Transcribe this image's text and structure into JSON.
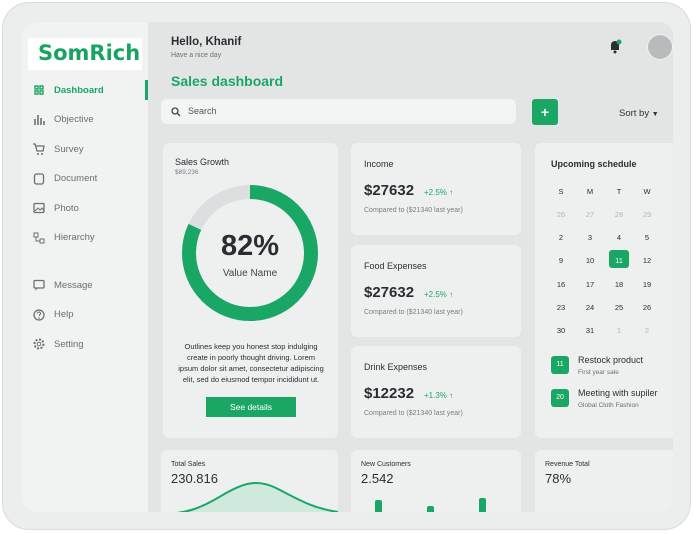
{
  "brand": "SomRich",
  "sidebar": {
    "menu": [
      "Dashboard",
      "Objective",
      "Survey",
      "Document",
      "Photo",
      "Hierarchy"
    ],
    "secondary": [
      "Message",
      "Help",
      "Setting"
    ],
    "active": 0
  },
  "header": {
    "greeting": "Hello, Khanif",
    "subtitle": "Have a nice day"
  },
  "page_title": "Sales dashboard",
  "search_placeholder": "Search",
  "add_button": "+",
  "sort": "Sort by",
  "sales_growth": {
    "title": "Sales Growth",
    "amount": "$89,236",
    "gauge": {
      "value": 82,
      "label": "82%"
    },
    "gauge_caption": "Value Name",
    "description": "Outlines keep you honest stop indulging create in poorly thought driving. Lorem ipsum dolor sit amet, consectetur adipiscing elit, sed do eiusmod tempor incididunt ut.",
    "button": "See details"
  },
  "stats": [
    {
      "title": "Income",
      "amount": "$27632",
      "change": "+2.5%",
      "note": "Compared to ($21340 last year)"
    },
    {
      "title": "Food Expenses",
      "amount": "$27632",
      "change": "+2.5%",
      "note": "Compared to ($21340 last year)"
    },
    {
      "title": "Drink Expenses",
      "amount": "$12232",
      "change": "+1.3%",
      "note": "Compared to ($21340 last year)"
    }
  ],
  "schedule": {
    "title": "Upcoming schedule",
    "weekdays": [
      "S",
      "M",
      "T",
      "W"
    ],
    "rows": [
      [
        {
          "day": "26",
          "faded": true
        },
        {
          "day": "27",
          "faded": true
        },
        {
          "day": "28",
          "faded": true
        },
        {
          "day": "29",
          "faded": true
        }
      ],
      [
        {
          "day": "2"
        },
        {
          "day": "3"
        },
        {
          "day": "4"
        },
        {
          "day": "5"
        }
      ],
      [
        {
          "day": "9"
        },
        {
          "day": "10"
        },
        {
          "day": "11",
          "selected": true
        },
        {
          "day": "12"
        }
      ],
      [
        {
          "day": "16"
        },
        {
          "day": "17"
        },
        {
          "day": "18"
        },
        {
          "day": "19"
        }
      ],
      [
        {
          "day": "23"
        },
        {
          "day": "24"
        },
        {
          "day": "25"
        },
        {
          "day": "26"
        }
      ],
      [
        {
          "day": "30"
        },
        {
          "day": "31"
        },
        {
          "day": "1",
          "faded": true
        },
        {
          "day": "2",
          "faded": true
        }
      ]
    ],
    "events": [
      {
        "day": "11",
        "title": "Restock product",
        "subtitle": "First year sale"
      },
      {
        "day": "20",
        "title": "Meeting with supiler",
        "subtitle": "Global Cloth Fashion"
      }
    ]
  },
  "bottom": [
    {
      "title": "Total Sales",
      "value": "230.816"
    },
    {
      "title": "New Customers",
      "value": "2.542"
    },
    {
      "title": "Revenue Total",
      "value": "78%"
    }
  ]
}
